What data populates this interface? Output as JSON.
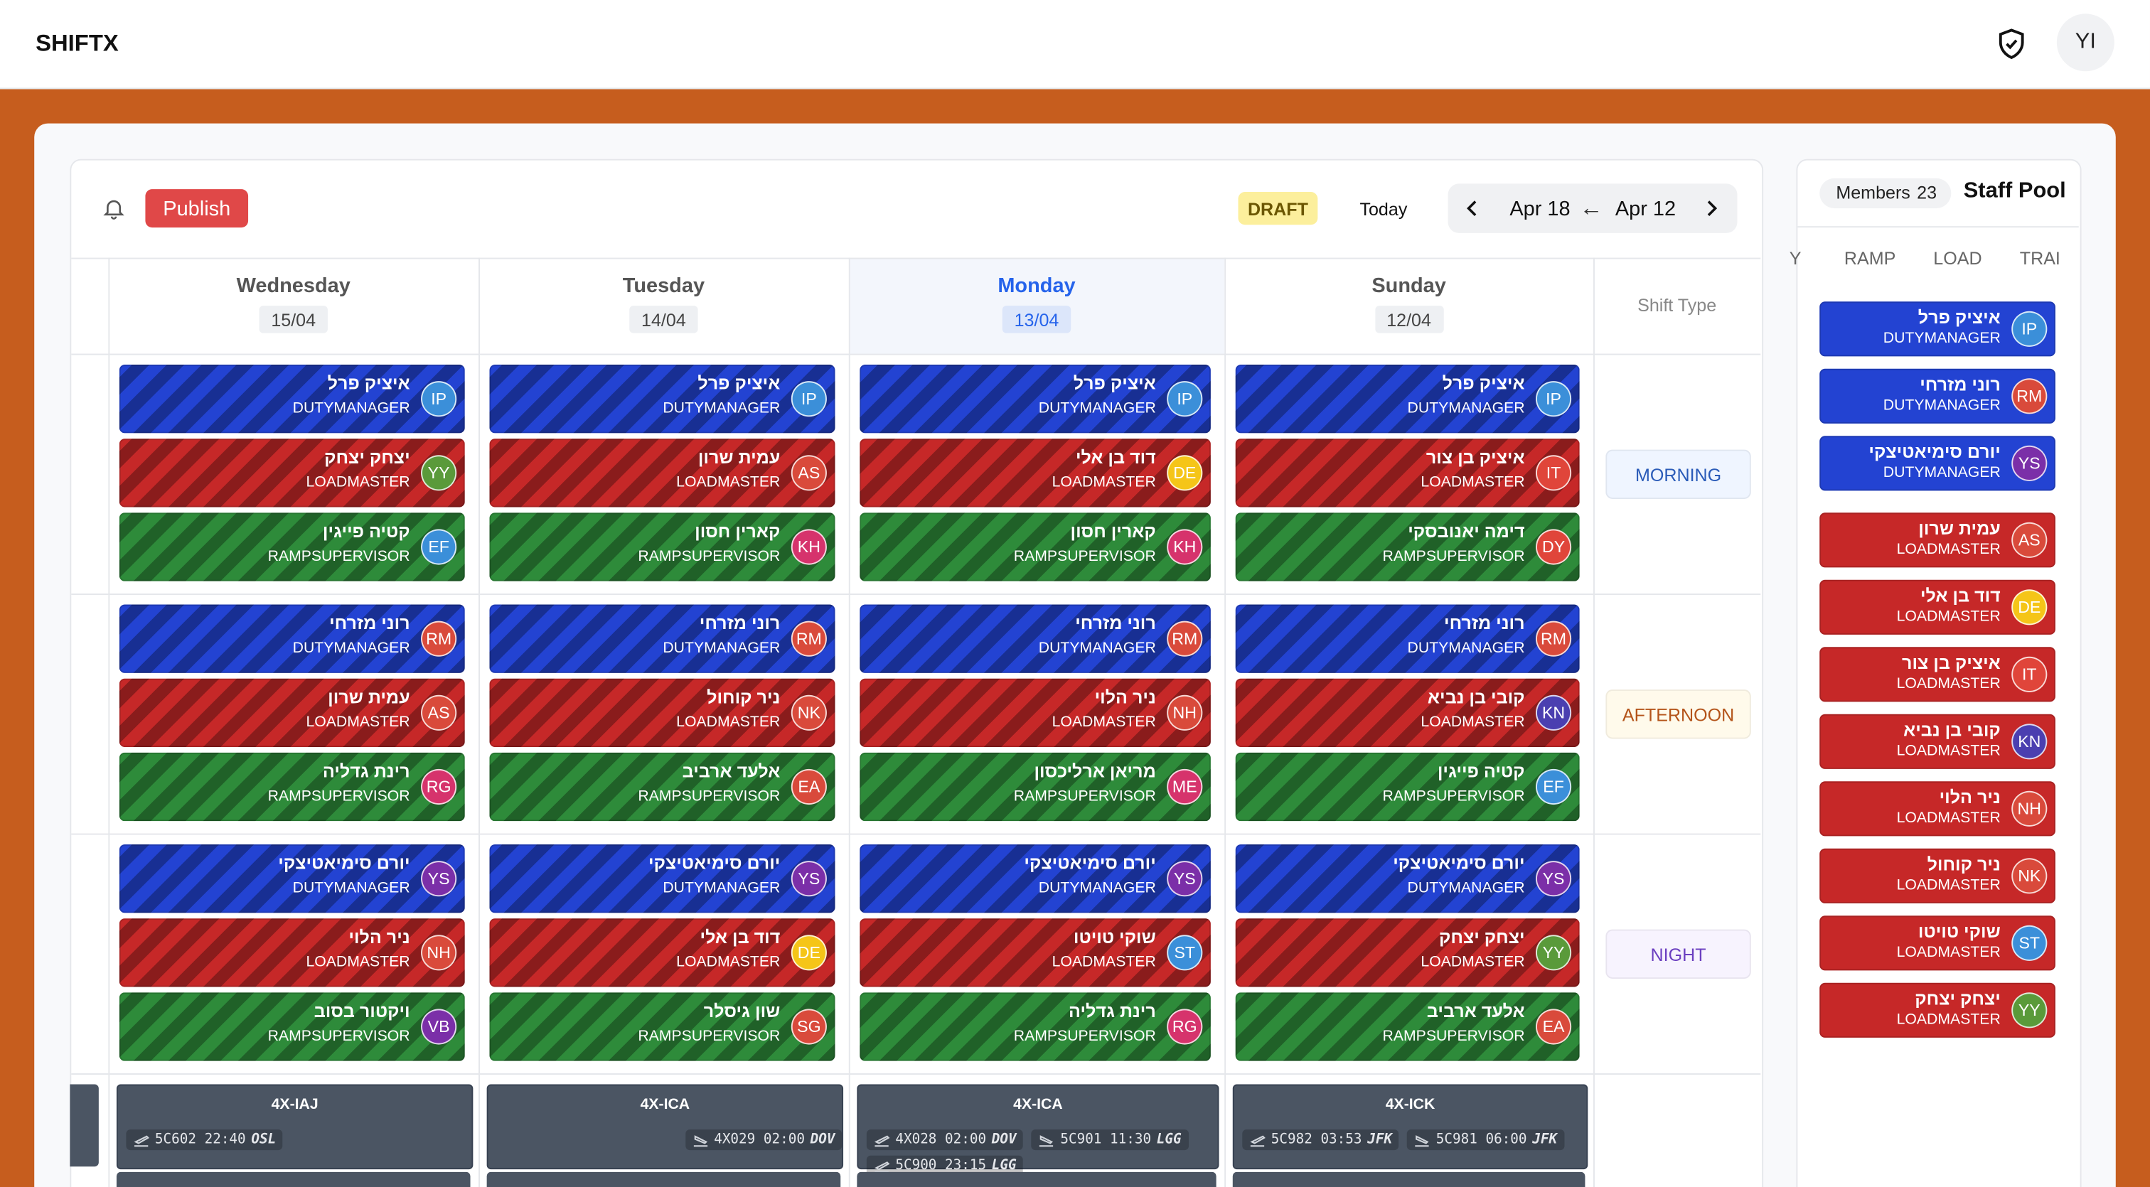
{
  "header": {
    "brand": "SHIFTX",
    "avatar": "YI"
  },
  "toolbar": {
    "publish": "Publish",
    "status": "DRAFT",
    "today": "Today",
    "range_end": "Apr 18",
    "range_arrow": "←",
    "range_start": "Apr 12"
  },
  "shift_type_header": "Shift Type",
  "role_colors": {
    "DUTYMANAGER": "#2343d2",
    "LOADMASTER": "#c62828",
    "RAMPSUPERVISOR": "#2e8b3a"
  },
  "avatar_colors": {
    "IP": "#3b8fd9",
    "YY": "#5a9a3a",
    "EF": "#3b8fd9",
    "AS": "#d94a3b",
    "KH": "#d6336c",
    "DE": "#f5c518",
    "IT": "#e0453a",
    "DY": "#e0453a",
    "RM": "#d94a3b",
    "NK": "#d94a3b",
    "EA": "#d94a3b",
    "NH": "#d94a3b",
    "ME": "#d6336c",
    "KN": "#4b3fb0",
    "RG": "#d6336c",
    "YS": "#7b2fa8",
    "VB": "#7b2fa8",
    "SG": "#d94a3b",
    "ST": "#3b8fd9"
  },
  "days": [
    {
      "name": "Wednesday",
      "date": "15/04"
    },
    {
      "name": "Tuesday",
      "date": "14/04"
    },
    {
      "name": "Monday",
      "date": "13/04",
      "current": true
    },
    {
      "name": "Sunday",
      "date": "12/04"
    }
  ],
  "shifts": [
    {
      "label": "MORNING",
      "bg": "#eff5ff",
      "fg": "#2a5bb8",
      "cells": [
        [
          {
            "name": "איציק פרל",
            "role": "DUTYMANAGER",
            "initials": "IP"
          },
          {
            "name": "יצחק יצחק",
            "role": "LOADMASTER",
            "initials": "YY"
          },
          {
            "name": "קטיה פייגין",
            "role": "RAMPSUPERVISOR",
            "initials": "EF"
          }
        ],
        [
          {
            "name": "איציק פרל",
            "role": "DUTYMANAGER",
            "initials": "IP"
          },
          {
            "name": "עמית שרון",
            "role": "LOADMASTER",
            "initials": "AS"
          },
          {
            "name": "קארין חסון",
            "role": "RAMPSUPERVISOR",
            "initials": "KH"
          }
        ],
        [
          {
            "name": "איציק פרל",
            "role": "DUTYMANAGER",
            "initials": "IP"
          },
          {
            "name": "דוד בן אלי",
            "role": "LOADMASTER",
            "initials": "DE"
          },
          {
            "name": "קארין חסון",
            "role": "RAMPSUPERVISOR",
            "initials": "KH"
          }
        ],
        [
          {
            "name": "איציק פרל",
            "role": "DUTYMANAGER",
            "initials": "IP"
          },
          {
            "name": "איציק בן צור",
            "role": "LOADMASTER",
            "initials": "IT"
          },
          {
            "name": "דימה יאנובסקי",
            "role": "RAMPSUPERVISOR",
            "initials": "DY"
          }
        ]
      ]
    },
    {
      "label": "AFTERNOON",
      "bg": "#fffaeb",
      "fg": "#b4541a",
      "cells": [
        [
          {
            "name": "רוני מזרחי",
            "role": "DUTYMANAGER",
            "initials": "RM"
          },
          {
            "name": "עמית שרון",
            "role": "LOADMASTER",
            "initials": "AS"
          },
          {
            "name": "רינת גדליה",
            "role": "RAMPSUPERVISOR",
            "initials": "RG"
          }
        ],
        [
          {
            "name": "רוני מזרחי",
            "role": "DUTYMANAGER",
            "initials": "RM"
          },
          {
            "name": "ניר קוחול",
            "role": "LOADMASTER",
            "initials": "NK"
          },
          {
            "name": "אלעד ארביב",
            "role": "RAMPSUPERVISOR",
            "initials": "EA"
          }
        ],
        [
          {
            "name": "רוני מזרחי",
            "role": "DUTYMANAGER",
            "initials": "RM"
          },
          {
            "name": "ניר הלוי",
            "role": "LOADMASTER",
            "initials": "NH"
          },
          {
            "name": "מריאן ארליכסון",
            "role": "RAMPSUPERVISOR",
            "initials": "ME"
          }
        ],
        [
          {
            "name": "רוני מזרחי",
            "role": "DUTYMANAGER",
            "initials": "RM"
          },
          {
            "name": "קובי בן נביא",
            "role": "LOADMASTER",
            "initials": "KN"
          },
          {
            "name": "קטיה פייגין",
            "role": "RAMPSUPERVISOR",
            "initials": "EF"
          }
        ]
      ]
    },
    {
      "label": "NIGHT",
      "bg": "#f7f3fe",
      "fg": "#6b3fc0",
      "cells": [
        [
          {
            "name": "יורם סימיאטיצקי",
            "role": "DUTYMANAGER",
            "initials": "YS"
          },
          {
            "name": "ניר הלוי",
            "role": "LOADMASTER",
            "initials": "NH"
          },
          {
            "name": "ויקטור בסוב",
            "role": "RAMPSUPERVISOR",
            "initials": "VB"
          }
        ],
        [
          {
            "name": "יורם סימיאטיצקי",
            "role": "DUTYMANAGER",
            "initials": "YS"
          },
          {
            "name": "דוד בן אלי",
            "role": "LOADMASTER",
            "initials": "DE"
          },
          {
            "name": "שון גיסלר",
            "role": "RAMPSUPERVISOR",
            "initials": "SG"
          }
        ],
        [
          {
            "name": "יורם סימיאטיצקי",
            "role": "DUTYMANAGER",
            "initials": "YS"
          },
          {
            "name": "שוקי טויטו",
            "role": "LOADMASTER",
            "initials": "ST"
          },
          {
            "name": "רינת גדליה",
            "role": "RAMPSUPERVISOR",
            "initials": "RG"
          }
        ],
        [
          {
            "name": "יורם סימיאטיצקי",
            "role": "DUTYMANAGER",
            "initials": "YS"
          },
          {
            "name": "יצחק יצחק",
            "role": "LOADMASTER",
            "initials": "YY"
          },
          {
            "name": "אלעד ארביב",
            "role": "RAMPSUPERVISOR",
            "initials": "EA"
          }
        ]
      ]
    }
  ],
  "flights": [
    {
      "tail": "4X-IAJ",
      "legs": [
        {
          "dir": "dep",
          "flight": "5C602 22:40",
          "airport": "OSL"
        }
      ]
    },
    {
      "tail": "4X-ICA",
      "legs": [
        {
          "dir": "arr",
          "flight": "4X029 02:00",
          "airport": "DOV"
        }
      ]
    },
    {
      "tail": "4X-ICA",
      "legs": [
        {
          "dir": "dep",
          "flight": "4X028 02:00",
          "airport": "DOV"
        },
        {
          "dir": "arr",
          "flight": "5C901 11:30",
          "airport": "LGG"
        },
        {
          "dir": "dep",
          "flight": "5C900 23:15",
          "airport": "LGG"
        }
      ]
    },
    {
      "tail": "4X-ICK",
      "legs": [
        {
          "dir": "dep",
          "flight": "5C982 03:53",
          "airport": "JFK"
        },
        {
          "dir": "arr",
          "flight": "5C981 06:00",
          "airport": "JFK"
        }
      ]
    }
  ],
  "pool": {
    "title": "Staff Pool",
    "members_label": "Members",
    "members_count": 23,
    "tabs": [
      "Y",
      "RAMP",
      "LOAD",
      "TRAI"
    ],
    "staff": [
      {
        "name": "איציק פרל",
        "role": "DUTYMANAGER",
        "initials": "IP"
      },
      {
        "name": "רוני מזרחי",
        "role": "DUTYMANAGER",
        "initials": "RM"
      },
      {
        "name": "יורם סימיאטיצקי",
        "role": "DUTYMANAGER",
        "initials": "YS"
      },
      {
        "name": "עמית שרון",
        "role": "LOADMASTER",
        "initials": "AS"
      },
      {
        "name": "דוד בן אלי",
        "role": "LOADMASTER",
        "initials": "DE"
      },
      {
        "name": "איציק בן צור",
        "role": "LOADMASTER",
        "initials": "IT"
      },
      {
        "name": "קובי בן נביא",
        "role": "LOADMASTER",
        "initials": "KN"
      },
      {
        "name": "ניר הלוי",
        "role": "LOADMASTER",
        "initials": "NH"
      },
      {
        "name": "ניר קוחול",
        "role": "LOADMASTER",
        "initials": "NK"
      },
      {
        "name": "שוקי טויטו",
        "role": "LOADMASTER",
        "initials": "ST"
      },
      {
        "name": "יצחק יצחק",
        "role": "LOADMASTER",
        "initials": "YY"
      }
    ]
  }
}
